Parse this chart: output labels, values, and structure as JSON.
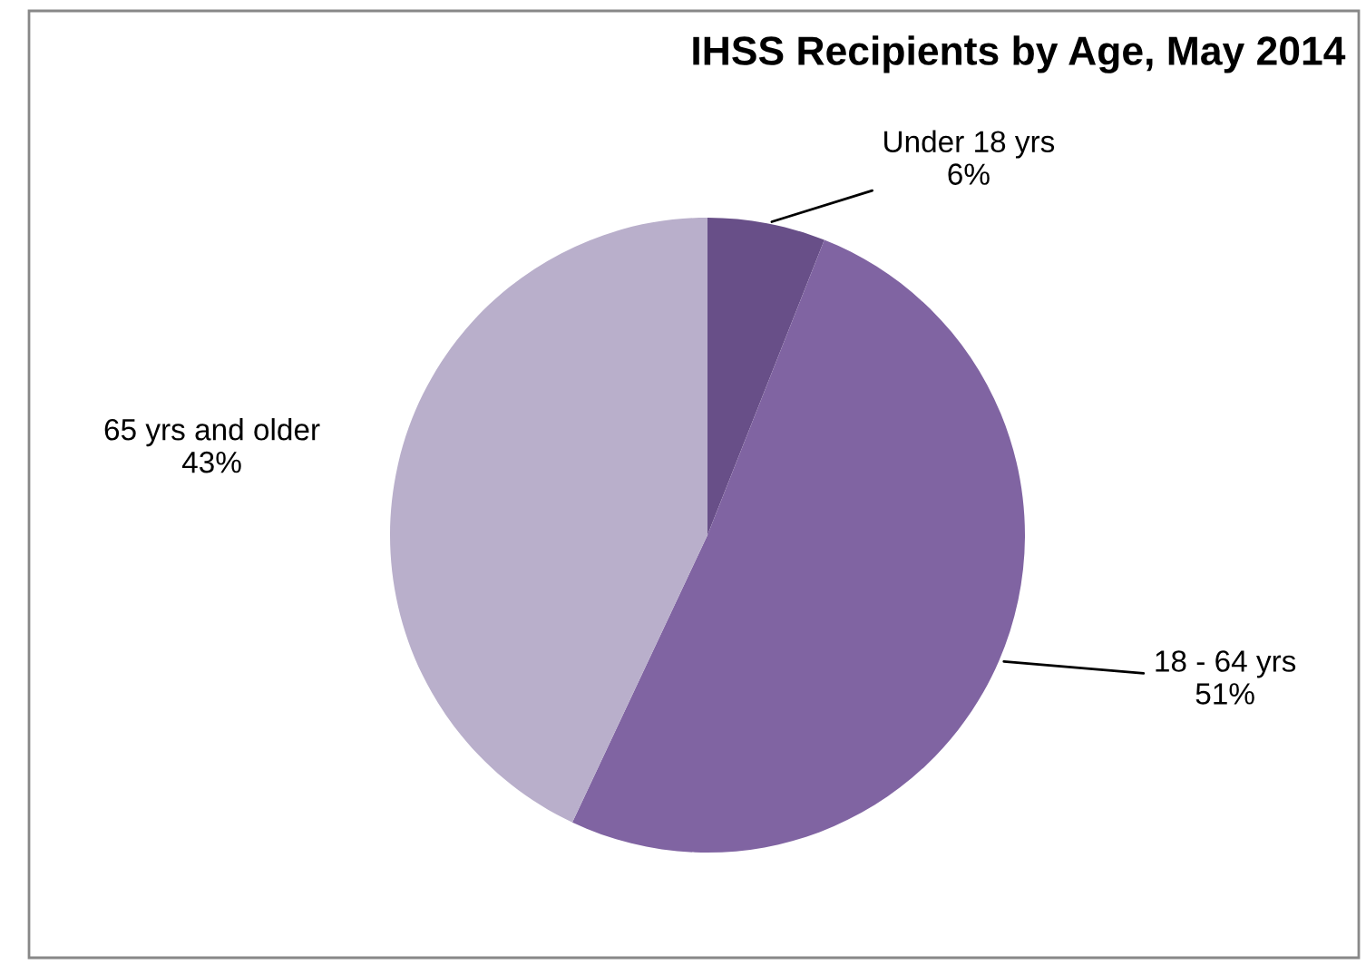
{
  "chart_data": {
    "type": "pie",
    "title": "IHSS Recipients by Age, May 2014",
    "categories": [
      "Under 18 yrs",
      "18 - 64 yrs",
      "65 yrs and older"
    ],
    "values": [
      6,
      51,
      43
    ],
    "colors": [
      "#684f88",
      "#8064a2",
      "#b9afcb"
    ],
    "value_labels": [
      "6%",
      "51%",
      "43%"
    ],
    "legend": false
  }
}
